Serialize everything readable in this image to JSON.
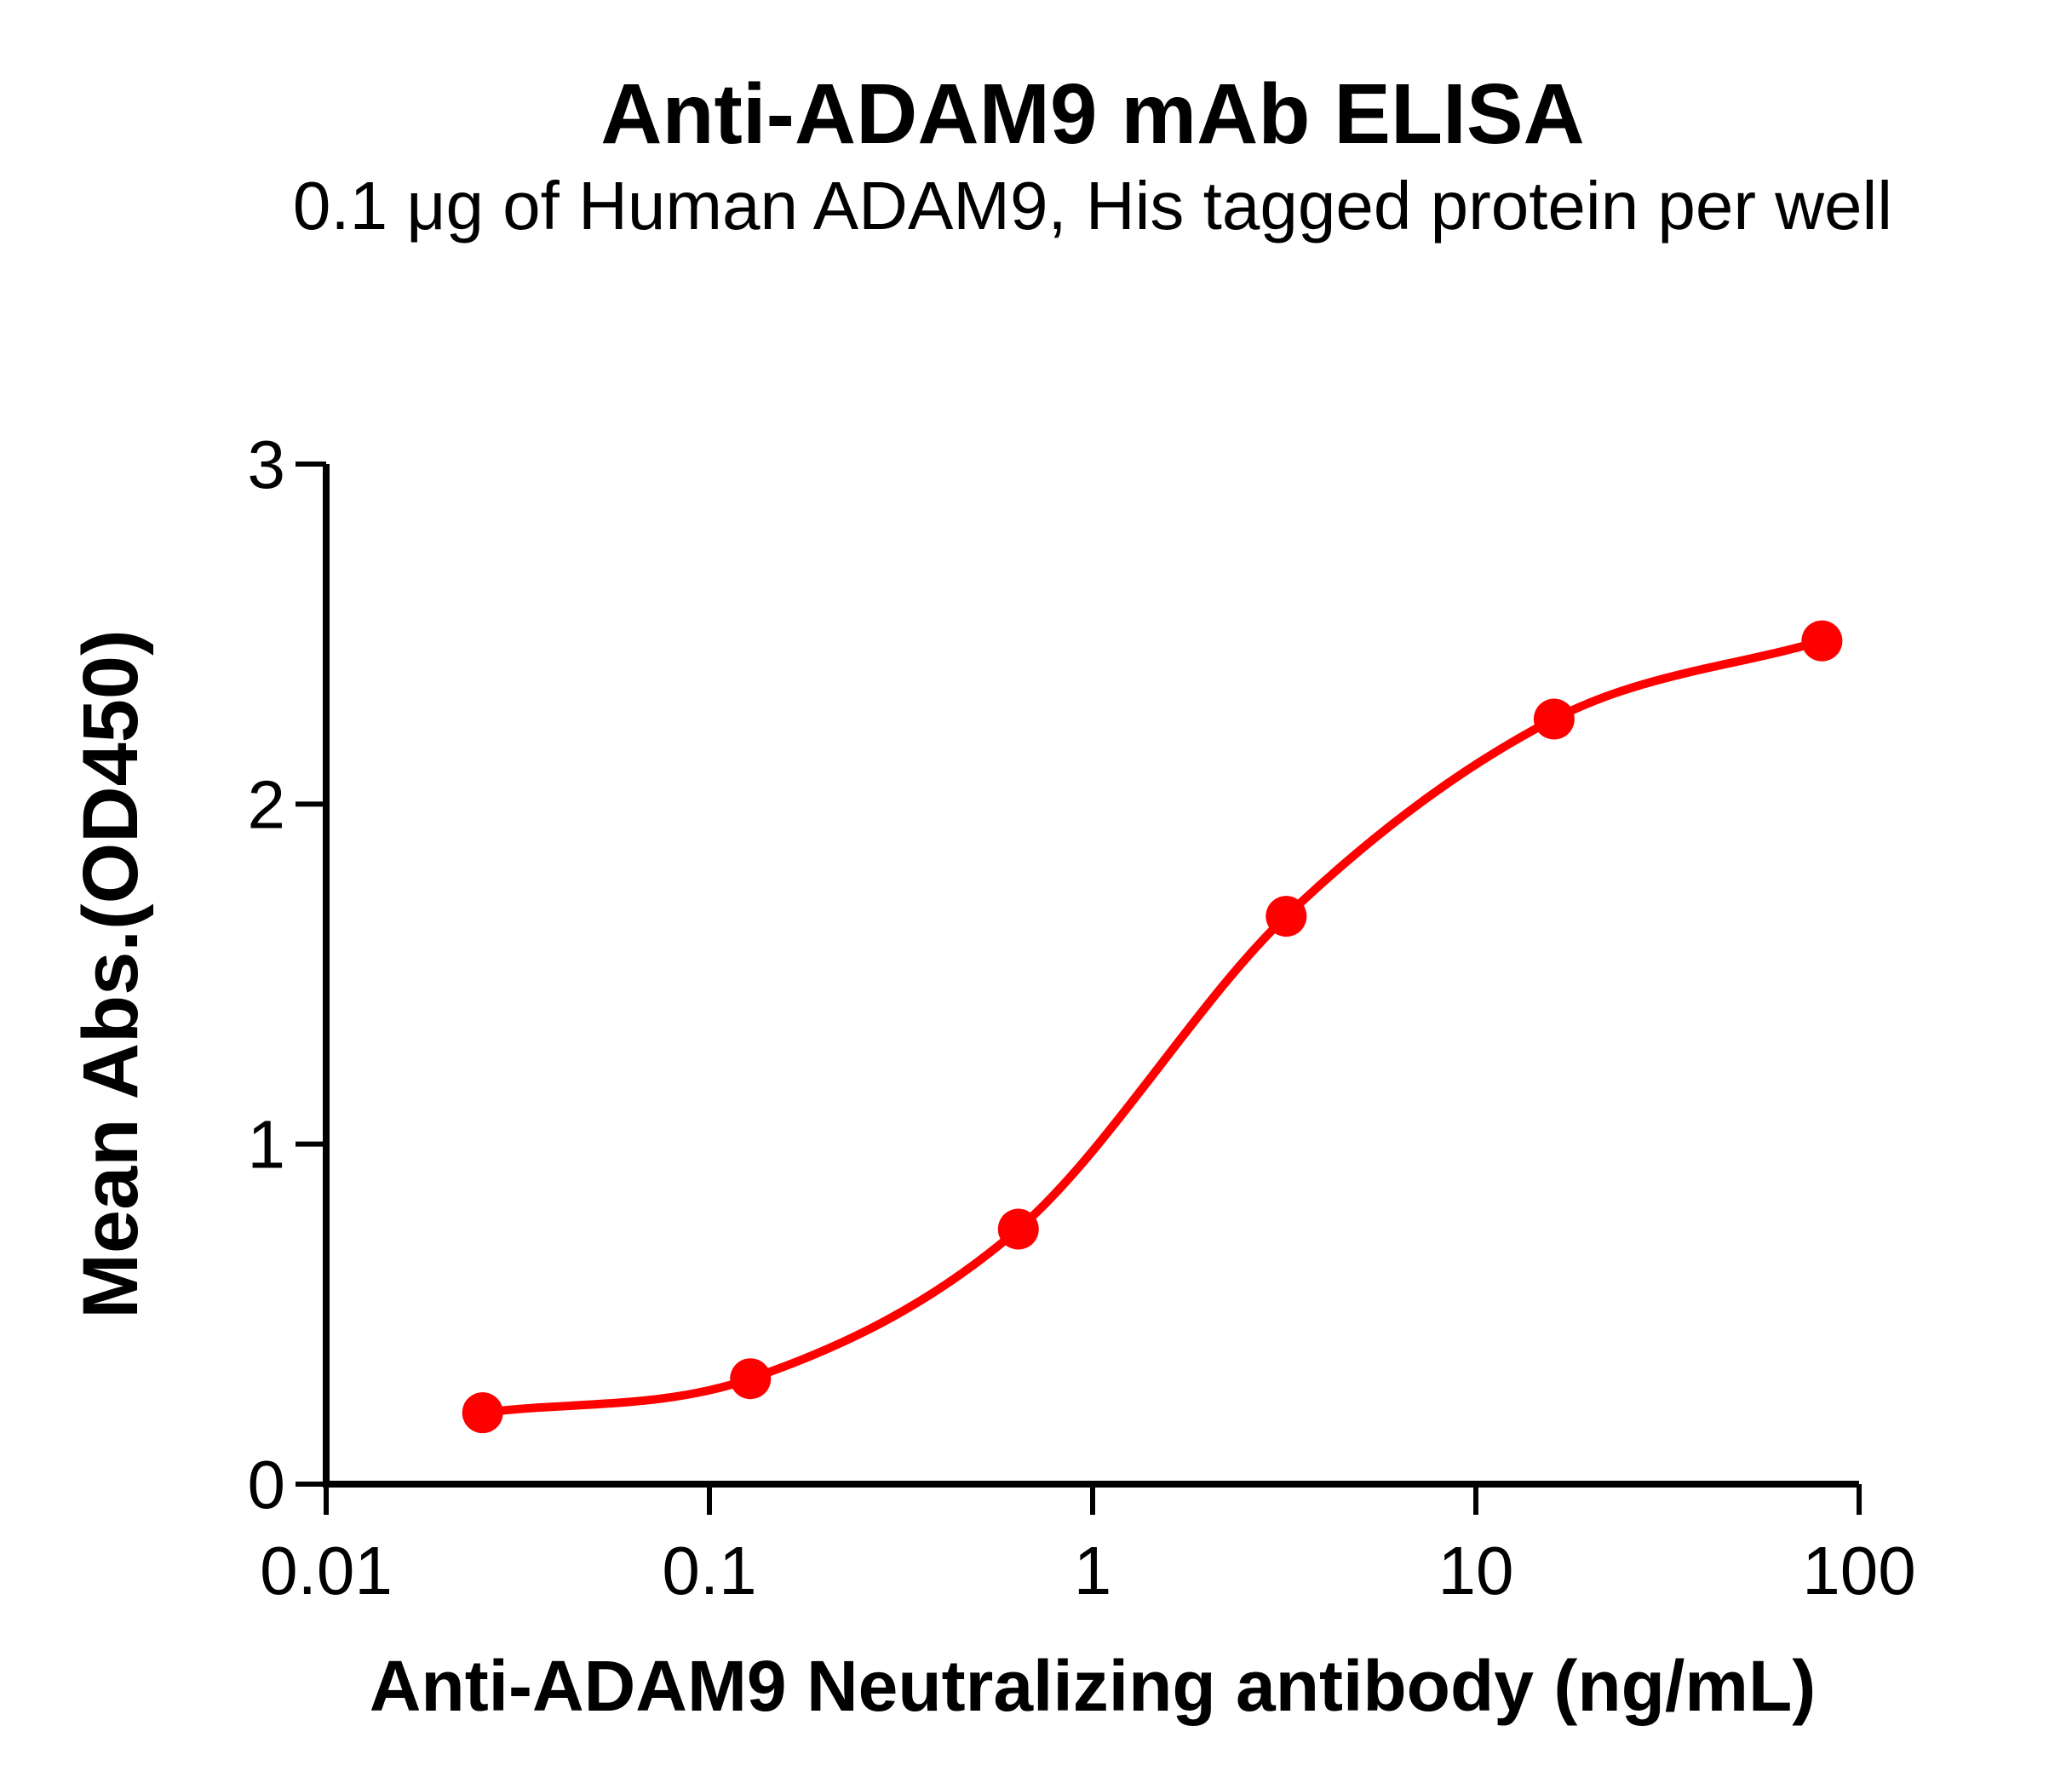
{
  "chart_data": {
    "type": "scatter",
    "title": "Anti-ADAM9 mAb ELISA",
    "subtitle": "0.1 μg of Human ADAM9, His tagged protein per well",
    "xlabel": "Anti-ADAM9 Neutralizing antibody (ng/mL)",
    "ylabel": "Mean Abs.(OD450)",
    "x_scale": "log10",
    "xlim": [
      0.01,
      100
    ],
    "ylim": [
      0,
      3
    ],
    "x_tick_values": [
      0.01,
      0.1,
      1,
      10,
      100
    ],
    "x_tick_labels": [
      "0.01",
      "0.1",
      "1",
      "10",
      "100"
    ],
    "y_tick_values": [
      0,
      1,
      2,
      3
    ],
    "y_tick_labels": [
      "0",
      "1",
      "2",
      "3"
    ],
    "grid": false,
    "legend": false,
    "x": [
      0.0256,
      0.128,
      0.64,
      3.2,
      16,
      80
    ],
    "y": [
      0.21,
      0.31,
      0.75,
      1.67,
      2.25,
      2.48
    ],
    "curve": "sigmoidal dose-response fit through points",
    "colors": {
      "marker": "#FE0000",
      "line": "#FE0000",
      "axis": "#000000",
      "text": "#000000"
    }
  }
}
